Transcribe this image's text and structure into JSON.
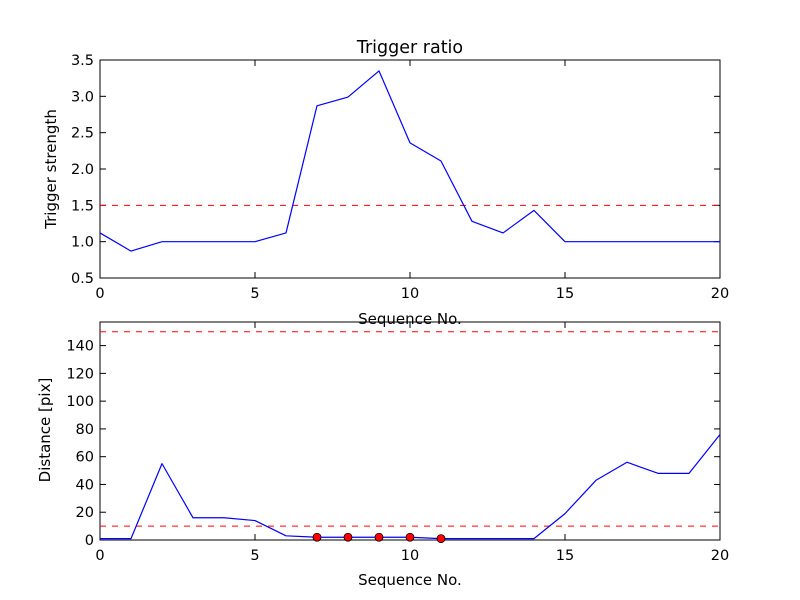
{
  "colors": {
    "line": "#0000ff",
    "threshold": "#ff0000",
    "marker": "#ff0000",
    "marker_edge": "#000000"
  },
  "chart_data": [
    {
      "type": "line",
      "title": "Trigger ratio",
      "xlabel": "Sequence No.",
      "ylabel": "Trigger strength",
      "xlim": [
        0,
        20
      ],
      "ylim": [
        0.5,
        3.5
      ],
      "xticks": [
        0,
        5,
        10,
        15,
        20
      ],
      "yticks": [
        0.5,
        1.0,
        1.5,
        2.0,
        2.5,
        3.0,
        3.5
      ],
      "ytick_labels": [
        "0.5",
        "1.0",
        "1.5",
        "2.0",
        "2.5",
        "3.0",
        "3.5"
      ],
      "grid": false,
      "x": [
        0,
        1,
        2,
        3,
        4,
        5,
        6,
        7,
        8,
        9,
        10,
        11,
        12,
        13,
        14,
        15,
        16,
        17,
        18,
        19,
        20
      ],
      "y": [
        1.12,
        0.87,
        1.0,
        1.0,
        1.0,
        1.0,
        1.12,
        2.87,
        2.99,
        3.35,
        2.36,
        2.11,
        1.28,
        1.12,
        1.43,
        1.0,
        1.0,
        1.0,
        1.0,
        1.0,
        1.0
      ],
      "threshold_lines": [
        1.5
      ]
    },
    {
      "type": "line",
      "title": "",
      "xlabel": "Sequence No.",
      "ylabel": "Distance [pix]",
      "xlim": [
        0,
        20
      ],
      "ylim": [
        0,
        157
      ],
      "xticks": [
        0,
        5,
        10,
        15,
        20
      ],
      "yticks": [
        0,
        20,
        40,
        60,
        80,
        100,
        120,
        140
      ],
      "ytick_labels": [
        "0",
        "20",
        "40",
        "60",
        "80",
        "100",
        "120",
        "140"
      ],
      "grid": false,
      "x": [
        0,
        1,
        2,
        3,
        4,
        5,
        6,
        7,
        8,
        9,
        10,
        11,
        12,
        13,
        14,
        15,
        16,
        17,
        18,
        19,
        20
      ],
      "y": [
        1,
        1,
        55,
        16,
        16,
        14,
        3,
        2,
        2,
        2,
        2,
        1,
        1,
        1,
        1,
        19,
        43,
        56,
        48,
        48,
        76
      ],
      "markers": {
        "x": [
          7,
          8,
          9,
          10,
          11
        ],
        "y": [
          2,
          2,
          2,
          2,
          1
        ]
      },
      "threshold_lines": [
        10,
        150
      ]
    }
  ]
}
